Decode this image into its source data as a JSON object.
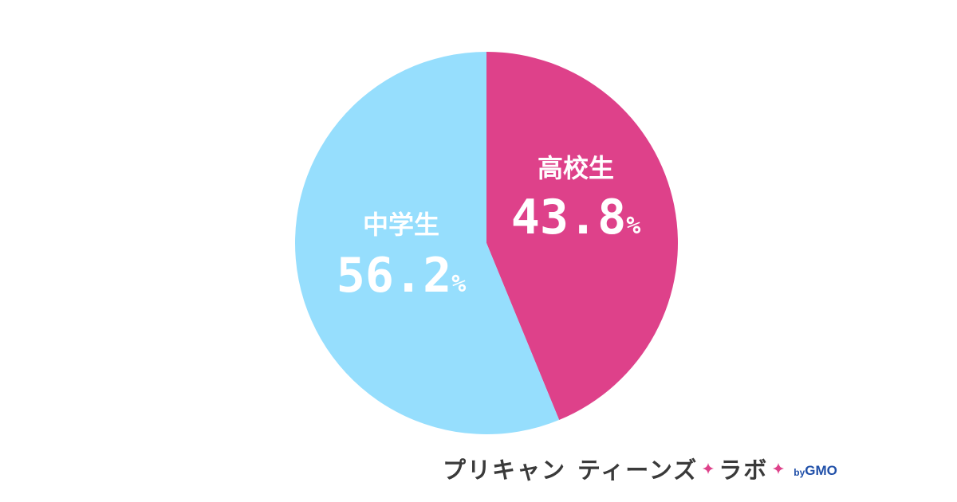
{
  "chart_data": {
    "type": "pie",
    "categories": [
      "高校生",
      "中学生"
    ],
    "values": [
      43.8,
      56.2
    ],
    "unit": "%",
    "colors": [
      "#de418a",
      "#96defd"
    ],
    "start_angle_deg": 0,
    "direction": "clockwise"
  },
  "slices": [
    {
      "label": "高校生",
      "value_text": "43.8",
      "unit": "%"
    },
    {
      "label": "中学生",
      "value_text": "56.2",
      "unit": "%"
    }
  ],
  "brand": {
    "part1": "プリキャン",
    "part2": "ティーンズ",
    "part3": "ラボ",
    "by": "by",
    "company": "GMO",
    "spark_color": "#de418a",
    "text_color": "#3a3a3a",
    "company_color": "#1f4fa8",
    "icons": [
      "sparkle-icon",
      "sparkle-icon"
    ]
  }
}
